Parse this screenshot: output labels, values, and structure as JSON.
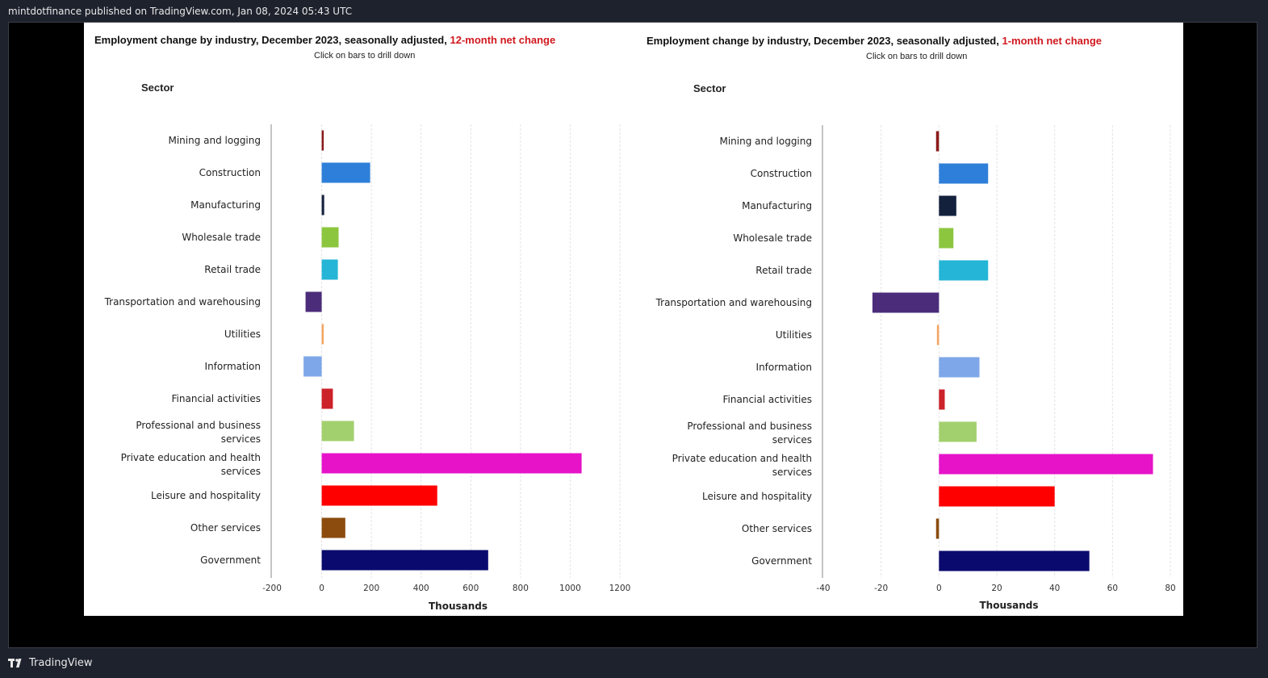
{
  "header": {
    "attribution": "mintdotfinance published on TradingView.com, Jan 08, 2024 05:43 UTC"
  },
  "footer": {
    "brand": "TradingView"
  },
  "chart_data": [
    {
      "type": "bar",
      "orientation": "horizontal",
      "title": "Employment change by industry, December 2023, seasonally adjusted,",
      "title_highlight": "12-month net change",
      "subtitle": "Click on bars to drill down",
      "ylabel": "Sector",
      "xlabel": "Thousands",
      "xlim": [
        -200,
        1200
      ],
      "xticks": [
        "-200",
        "0",
        "200",
        "400",
        "600",
        "800",
        "1000",
        "1200"
      ],
      "xtick_values": [
        -200,
        0,
        200,
        400,
        600,
        800,
        1000,
        1200
      ],
      "grid": true,
      "categories": [
        "Mining and logging",
        "Construction",
        "Manufacturing",
        "Wholesale trade",
        "Retail trade",
        "Transportation and warehousing",
        "Utilities",
        "Information",
        "Financial activities",
        "Professional and business services",
        "Private education and health services",
        "Leisure and hospitality",
        "Other services",
        "Government"
      ],
      "values": [
        8,
        195,
        10,
        68,
        65,
        -65,
        7,
        -73,
        45,
        130,
        1046,
        465,
        95,
        670
      ],
      "colors": [
        "#8b1a1a",
        "#2e7fd9",
        "#14213d",
        "#8cc63f",
        "#25b5d6",
        "#4b2c7a",
        "#f4a460",
        "#7da7e8",
        "#cc2229",
        "#a3d06e",
        "#e613c9",
        "#ff0000",
        "#8b4c0e",
        "#0a0a6e"
      ]
    },
    {
      "type": "bar",
      "orientation": "horizontal",
      "title": "Employment change by industry, December 2023, seasonally adjusted,",
      "title_highlight": "1-month net change",
      "subtitle": "Click on bars to drill down",
      "ylabel": "Sector",
      "xlabel": "Thousands",
      "xlim": [
        -40,
        80
      ],
      "xticks": [
        "-40",
        "-20",
        "0",
        "20",
        "40",
        "60",
        "80"
      ],
      "xtick_values": [
        -40,
        -20,
        0,
        20,
        40,
        60,
        80
      ],
      "grid": true,
      "categories": [
        "Mining and logging",
        "Construction",
        "Manufacturing",
        "Wholesale trade",
        "Retail trade",
        "Transportation and warehousing",
        "Utilities",
        "Information",
        "Financial activities",
        "Professional and business services",
        "Private education and health services",
        "Leisure and hospitality",
        "Other services",
        "Government"
      ],
      "values": [
        -1,
        17,
        6,
        5,
        17,
        -23,
        -0.5,
        14,
        2,
        13,
        74,
        40,
        -1,
        52
      ],
      "colors": [
        "#8b1a1a",
        "#2e7fd9",
        "#14213d",
        "#8cc63f",
        "#25b5d6",
        "#4b2c7a",
        "#f4a460",
        "#7da7e8",
        "#cc2229",
        "#a3d06e",
        "#e613c9",
        "#ff0000",
        "#8b4c0e",
        "#0a0a6e"
      ]
    }
  ]
}
